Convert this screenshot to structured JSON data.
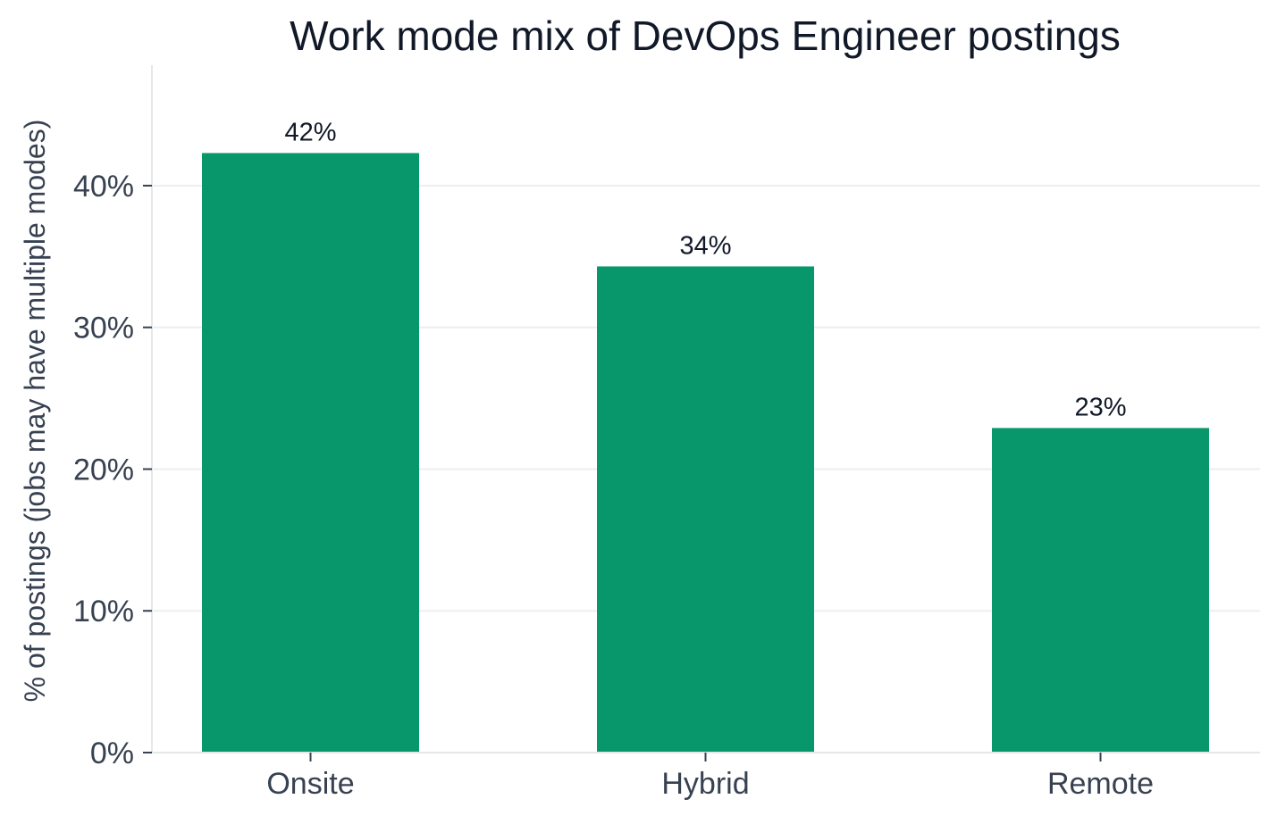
{
  "chart_data": {
    "type": "bar",
    "title": "Work mode mix of DevOps Engineer postings",
    "xlabel": "",
    "ylabel": "% of postings (jobs may have multiple modes)",
    "categories": [
      "Onsite",
      "Hybrid",
      "Remote"
    ],
    "values": [
      42.3,
      34.3,
      22.9
    ],
    "data_labels": [
      "42%",
      "34%",
      "23%"
    ],
    "ylim": [
      0,
      48.5
    ],
    "yticks": [
      0,
      10,
      20,
      30,
      40
    ],
    "ytick_labels": [
      "0%",
      "10%",
      "20%",
      "30%",
      "40%"
    ],
    "grid": "horizontal",
    "legend": "none",
    "colors": {
      "bar": "#07976a",
      "title": "#111827",
      "tick_text": "#374151",
      "gridline": "#eceef0",
      "axis": "#e5e7eb"
    }
  }
}
